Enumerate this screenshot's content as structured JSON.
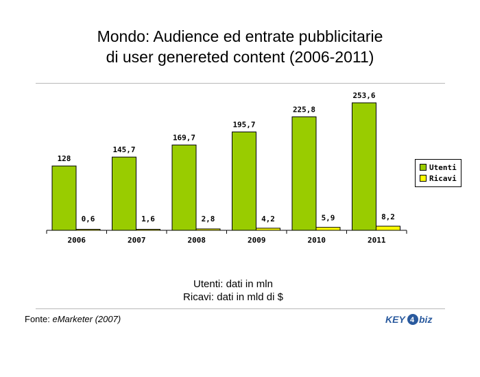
{
  "title": {
    "line1": "Mondo: Audience ed entrate pubblicitarie",
    "line2": "di user genereted content (2006-2011)"
  },
  "chart_data": {
    "type": "bar",
    "categories": [
      "2006",
      "2007",
      "2008",
      "2009",
      "2010",
      "2011"
    ],
    "series": [
      {
        "name": "Utenti",
        "values": [
          128,
          145.7,
          169.7,
          195.7,
          225.8,
          253.6
        ],
        "labels": [
          "128",
          "145,7",
          "169,7",
          "195,7",
          "225,8",
          "253,6"
        ],
        "color": "#99cc00"
      },
      {
        "name": "Ricavi",
        "values": [
          0.6,
          1.6,
          2.8,
          4.2,
          5.9,
          8.2
        ],
        "labels": [
          "0,6",
          "1,6",
          "2,8",
          "4,2",
          "5,9",
          "8,2"
        ],
        "color": "#ffff00"
      }
    ],
    "ylim": [
      0,
      260
    ],
    "legend_position": "right",
    "grid": false
  },
  "notes": {
    "line1": "Utenti: dati in mln",
    "line2": "Ricavi: dati in mld di $"
  },
  "source": {
    "prefix": "Fonte: ",
    "name": "eMarketer (2007)"
  },
  "logo": {
    "text_left": "KEY",
    "text_mid": "4",
    "text_right": "biz"
  },
  "colors": {
    "utenti": "#99cc00",
    "ricavi": "#ffff00",
    "logo_blue": "#2a5a9e"
  }
}
